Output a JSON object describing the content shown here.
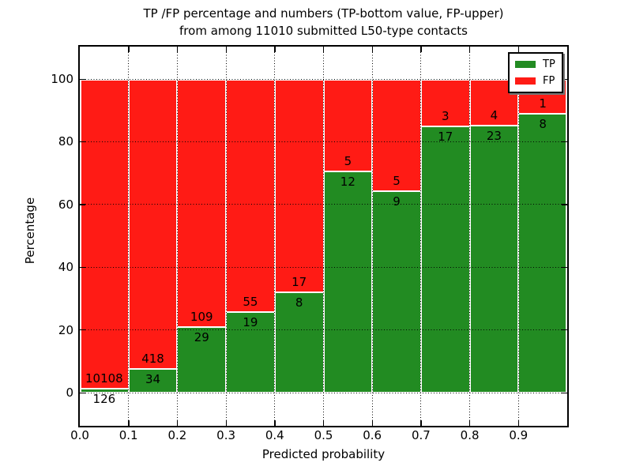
{
  "chart_data": {
    "type": "bar",
    "stacked": true,
    "title_line1": "TP /FP percentage and numbers (TP-bottom value, FP-upper)",
    "title_line2": "from among 11010 submitted L50-type contacts",
    "title": "TP /FP percentage and numbers (TP-bottom value, FP-upper) from among 11010 submitted L50-type contacts",
    "xlabel": "Predicted probability",
    "ylabel": "Percentage",
    "total_submitted": 11010,
    "bins": [
      "0.0-0.1",
      "0.1-0.2",
      "0.2-0.3",
      "0.3-0.4",
      "0.4-0.5",
      "0.5-0.6",
      "0.6-0.7",
      "0.7-0.8",
      "0.8-0.9",
      "0.9-1.0"
    ],
    "series": [
      {
        "name": "TP",
        "color": "#228B22",
        "counts": [
          126,
          34,
          29,
          19,
          8,
          12,
          9,
          17,
          23,
          8
        ]
      },
      {
        "name": "FP",
        "color": "#ff1b15",
        "counts": [
          10108,
          418,
          109,
          55,
          17,
          5,
          5,
          3,
          4,
          1
        ]
      }
    ],
    "tp_percent": [
      1.23,
      7.52,
      21.01,
      25.68,
      32.0,
      70.59,
      64.29,
      85.0,
      85.19,
      88.89
    ],
    "x_tick_labels": [
      "0.0",
      "0.1",
      "0.2",
      "0.3",
      "0.4",
      "0.5",
      "0.6",
      "0.7",
      "0.8",
      "0.9"
    ],
    "y_tick_labels": [
      "0",
      "20",
      "40",
      "60",
      "80",
      "100"
    ],
    "y_ticks": [
      0,
      20,
      40,
      60,
      80,
      100
    ],
    "xlim": [
      0.0,
      1.0
    ],
    "ylim": [
      -10.6,
      110.3
    ],
    "grid": "dotted black, drawn above bars",
    "bar_edge_color": "#ffffff",
    "legend": {
      "position": "upper right",
      "entries": [
        {
          "label": "TP",
          "color": "#228B22"
        },
        {
          "label": "FP",
          "color": "#ff1b15"
        }
      ]
    }
  }
}
